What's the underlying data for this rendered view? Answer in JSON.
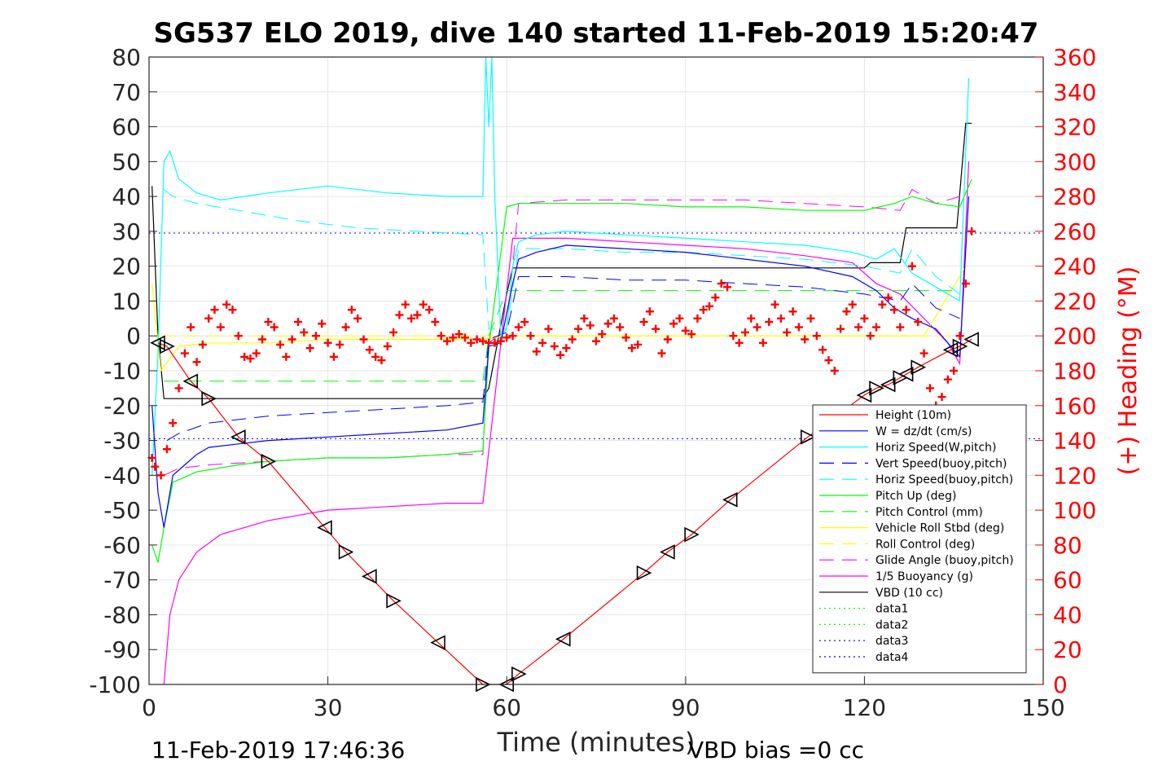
{
  "chart_data": {
    "type": "line",
    "title": "SG537 ELO 2019, dive 140 started 11-Feb-2019 15:20:47",
    "xlabel": "Time (minutes)",
    "ylabel_right": "(+) Heading (°M)",
    "xlim": [
      0,
      150
    ],
    "ylim": [
      -100,
      80
    ],
    "ylim_right": [
      0,
      360
    ],
    "x_ticks": [
      "0",
      "30",
      "60",
      "90",
      "120",
      "150"
    ],
    "y_ticks": [
      "-100",
      "-90",
      "-80",
      "-70",
      "-60",
      "-50",
      "-40",
      "-30",
      "-20",
      "-10",
      "0",
      "10",
      "20",
      "30",
      "40",
      "50",
      "60",
      "70",
      "80"
    ],
    "y_ticks_right": [
      "0",
      "20",
      "40",
      "60",
      "80",
      "100",
      "120",
      "140",
      "160",
      "180",
      "200",
      "220",
      "240",
      "260",
      "280",
      "300",
      "320",
      "340",
      "360"
    ],
    "grid": true,
    "legend_position": "bottom-right",
    "series": [
      {
        "name": "Height (10m)",
        "color": "#ff0000",
        "style": "solid",
        "marker": "triangle",
        "x": [
          1.5,
          3,
          7,
          10,
          15,
          20,
          29.5,
          33,
          37,
          41,
          48.5,
          56,
          60,
          62,
          69.5,
          83,
          87,
          91,
          97.5,
          110.5,
          120,
          122,
          124,
          126,
          127,
          129,
          134.5,
          136,
          138
        ],
        "y": [
          -2,
          -3,
          -13,
          -18,
          -29,
          -36,
          -55,
          -62,
          -69,
          -76,
          -88,
          -100,
          -100,
          -97,
          -87,
          -68,
          -62,
          -57,
          -47,
          -29,
          -17,
          -15,
          -14,
          -12,
          -11,
          -9,
          -4,
          -3,
          -1
        ]
      },
      {
        "name": "W = dz/dt (cm/s)",
        "color": "#0000ff",
        "style": "solid",
        "x": [
          0.5,
          1.5,
          2.5,
          4,
          6,
          8,
          10,
          15,
          20,
          30,
          40,
          50,
          56,
          57,
          59,
          61,
          62,
          65,
          70,
          80,
          90,
          100,
          110,
          118,
          122,
          125,
          128,
          132,
          136,
          137.5
        ],
        "y": [
          -20,
          -45,
          -55,
          -40,
          -37,
          -34,
          -32,
          -31,
          -30,
          -29,
          -28,
          -27,
          -25,
          -3,
          -2,
          15,
          22,
          24,
          26,
          25,
          24,
          22,
          20,
          17,
          13,
          8,
          5,
          2,
          -6,
          40
        ]
      },
      {
        "name": "Horiz Speed(W,pitch)",
        "color": "#00ffff",
        "style": "solid",
        "x": [
          0.5,
          1.5,
          2.5,
          3.5,
          5,
          8,
          12,
          20,
          30,
          40,
          50,
          55,
          56,
          56.5,
          57,
          57.5,
          58,
          59,
          60,
          61,
          62,
          65,
          70,
          80,
          90,
          100,
          110,
          118,
          122,
          125,
          128,
          132,
          136,
          137.5
        ],
        "y": [
          -40,
          -5,
          50,
          53,
          45,
          41,
          39,
          41,
          43,
          41,
          40,
          40,
          40,
          80,
          60,
          80,
          40,
          0,
          2,
          20,
          27,
          29,
          30,
          29,
          28,
          27,
          26,
          24,
          22,
          25,
          18,
          14,
          10,
          74
        ]
      },
      {
        "name": "Vert Speed(buoy,pitch)",
        "color": "#0000ff",
        "style": "dashed",
        "x": [
          3,
          5,
          10,
          20,
          30,
          40,
          50,
          56,
          57,
          60,
          62,
          70,
          80,
          90,
          100,
          110,
          120,
          126,
          128,
          132,
          136
        ],
        "y": [
          -30,
          -28,
          -25,
          -23,
          -22,
          -21,
          -20,
          -19,
          -1,
          1,
          17,
          17,
          16,
          16,
          15,
          14,
          12,
          10,
          15,
          8,
          5
        ]
      },
      {
        "name": "Horiz Speed(buoy,pitch)",
        "color": "#00ffff",
        "style": "dashed",
        "x": [
          2.5,
          4,
          8,
          15,
          25,
          35,
          45,
          56,
          57,
          60,
          62,
          70,
          80,
          90,
          100,
          110,
          120,
          126,
          128,
          132,
          136
        ],
        "y": [
          42,
          40,
          38,
          36,
          33,
          31,
          30,
          29,
          2,
          2,
          25,
          25,
          24,
          24,
          23,
          22,
          20,
          18,
          25,
          17,
          12
        ]
      },
      {
        "name": "Pitch Up (deg)",
        "color": "#00ff00",
        "style": "solid",
        "x": [
          0.5,
          1.5,
          2.5,
          4,
          8,
          15,
          20,
          30,
          40,
          50,
          56,
          57,
          60,
          62,
          70,
          80,
          90,
          100,
          110,
          120,
          125,
          128,
          132,
          136,
          138
        ],
        "y": [
          -60,
          -65,
          -55,
          -42,
          -39,
          -37,
          -36,
          -35,
          -35,
          -34,
          -33,
          -3,
          37,
          38,
          38,
          38,
          37,
          37,
          36,
          36,
          38,
          40,
          38,
          37,
          45
        ]
      },
      {
        "name": "Pitch Control (mm)",
        "color": "#00ff00",
        "style": "dashed",
        "x": [
          2.5,
          56,
          57,
          60,
          120,
          136
        ],
        "y": [
          -13,
          -13,
          0,
          13,
          13,
          13
        ]
      },
      {
        "name": "Vehicle Roll Stbd (deg)",
        "color": "#ffff00",
        "style": "solid",
        "x": [
          0.5,
          2,
          5,
          10,
          20,
          30,
          40,
          50,
          56,
          60,
          70,
          80,
          90,
          100,
          110,
          120,
          130,
          137
        ],
        "y": [
          15,
          -10,
          -3,
          -2,
          -2,
          -1,
          -1,
          -1,
          -1,
          0,
          0,
          0,
          0,
          0,
          0,
          0,
          0,
          20
        ]
      },
      {
        "name": "Roll Control (deg)",
        "color": "#ffff00",
        "style": "dashed",
        "x": [
          2,
          56,
          60,
          137
        ],
        "y": [
          0,
          0,
          0,
          0
        ]
      },
      {
        "name": "Glide Angle (buoy,pitch)",
        "color": "#ff00ff",
        "style": "dashed",
        "x": [
          2.5,
          5,
          10,
          20,
          30,
          40,
          50,
          56,
          57,
          60,
          62,
          70,
          80,
          90,
          100,
          110,
          120,
          126,
          128,
          132,
          136
        ],
        "y": [
          -40,
          -38,
          -37,
          -36,
          -35,
          -35,
          -34,
          -34,
          -2,
          2,
          38,
          39,
          39,
          39,
          39,
          38,
          37,
          36,
          42,
          38,
          40
        ]
      },
      {
        "name": "1/5 Buoyancy (g)",
        "color": "#ff00ff",
        "style": "solid",
        "x": [
          2.5,
          3.5,
          5,
          8,
          12,
          20,
          30,
          40,
          50,
          56,
          57,
          61,
          70,
          80,
          90,
          100,
          110,
          118,
          122,
          126,
          130,
          134,
          136,
          137.5
        ],
        "y": [
          -100,
          -80,
          -70,
          -62,
          -57,
          -53,
          -50,
          -49,
          -48,
          -48,
          -33,
          28,
          28,
          27,
          26,
          25,
          23,
          21,
          15,
          12,
          5,
          -2,
          -8,
          50
        ]
      },
      {
        "name": "VBD (10 cc)",
        "color": "#000000",
        "style": "solid",
        "x": [
          0.5,
          1.5,
          2.5,
          56,
          57,
          60,
          61,
          120,
          121,
          126,
          127,
          135.5,
          137,
          138
        ],
        "y": [
          43,
          0,
          -18,
          -18,
          -15,
          12,
          19.5,
          19.5,
          21,
          21,
          31,
          31,
          61,
          61
        ]
      },
      {
        "name": "data1",
        "color": "#00ff00",
        "style": "dotted",
        "x": [],
        "y": []
      },
      {
        "name": "data2",
        "color": "#00ff00",
        "style": "dotted",
        "x": [],
        "y": []
      },
      {
        "name": "data3",
        "color": "#0000ff",
        "style": "dotted",
        "x": [
          0,
          150
        ],
        "y": [
          29.5,
          29.5
        ]
      },
      {
        "name": "data4",
        "color": "#0000ff",
        "style": "dotted",
        "x": [
          0,
          150
        ],
        "y": [
          -29.5,
          -29.5
        ]
      }
    ],
    "heading": {
      "color": "#ff0000",
      "marker": "+",
      "axis": "right",
      "x": [
        0.5,
        1,
        2,
        3,
        4,
        5,
        6,
        7,
        8,
        9,
        10,
        11,
        12,
        13,
        14,
        15,
        16,
        17,
        18,
        19,
        20,
        21,
        22,
        23,
        24,
        25,
        26,
        27,
        28,
        29,
        30,
        31,
        32,
        33,
        34,
        35,
        36,
        37,
        38,
        39,
        40,
        41,
        42,
        43,
        44,
        45,
        46,
        47,
        48,
        49,
        50,
        51,
        52,
        53,
        54,
        55,
        56,
        57,
        58,
        59,
        60,
        61,
        62,
        63,
        64,
        65,
        66,
        67,
        68,
        69,
        70,
        71,
        72,
        73,
        74,
        75,
        76,
        77,
        78,
        79,
        80,
        81,
        82,
        83,
        84,
        85,
        86,
        87,
        88,
        89,
        90,
        91,
        92,
        93,
        94,
        95,
        96,
        97,
        98,
        99,
        100,
        101,
        102,
        103,
        104,
        105,
        106,
        107,
        108,
        109,
        110,
        111,
        112,
        113,
        114,
        115,
        116,
        117,
        118,
        119,
        120,
        121,
        122,
        123,
        124,
        125,
        126,
        127,
        128,
        129,
        130,
        131,
        132,
        133,
        134,
        135,
        136,
        137,
        138
      ],
      "y": [
        130,
        125,
        120,
        135,
        150,
        170,
        190,
        205,
        185,
        195,
        210,
        215,
        205,
        218,
        215,
        200,
        188,
        187,
        190,
        198,
        208,
        205,
        195,
        188,
        198,
        208,
        202,
        193,
        200,
        207,
        196,
        188,
        195,
        205,
        215,
        210,
        198,
        192,
        188,
        186,
        194,
        202,
        212,
        218,
        210,
        212,
        218,
        215,
        208,
        200,
        197,
        199,
        201,
        199,
        196,
        198,
        197,
        196,
        196,
        197,
        199,
        200,
        205,
        208,
        200,
        191,
        196,
        204,
        194,
        189,
        193,
        198,
        204,
        210,
        206,
        197,
        201,
        207,
        210,
        205,
        199,
        193,
        195,
        208,
        214,
        204,
        190,
        198,
        207,
        210,
        203,
        201,
        210,
        215,
        217,
        222,
        230,
        228,
        200,
        196,
        202,
        210,
        205,
        196,
        208,
        218,
        210,
        202,
        214,
        205,
        198,
        210,
        200,
        192,
        186,
        180,
        204,
        214,
        218,
        205,
        210,
        200,
        205,
        218,
        222,
        215,
        205,
        215,
        240,
        208,
        190,
        170,
        160,
        165,
        175,
        180,
        200,
        230,
        260
      ]
    }
  },
  "footer": {
    "timestamp": "11-Feb-2019 17:46:36",
    "vbd_bias": "VBD bias =0 cc"
  }
}
